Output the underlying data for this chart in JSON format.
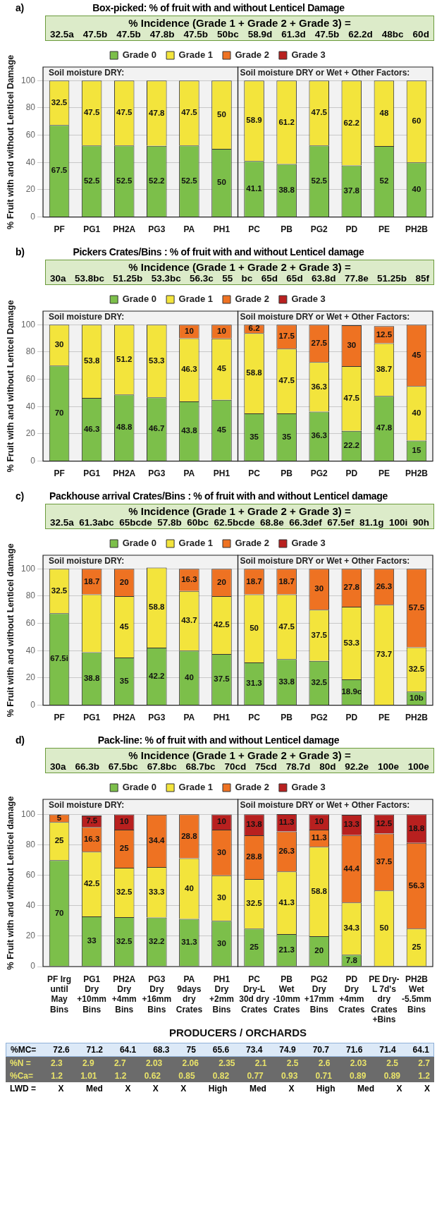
{
  "chart_data": [
    {
      "type": "bar",
      "stacked": true,
      "title": "Box-picked: % of fruit with and without Lenticel Damage",
      "subtitle": "% Incidence (Grade 1 + Grade 2 + Grade 3) =",
      "ylabel": "% Fruit with and without Lenticel Damage",
      "annotations": [
        "a)",
        "32.5a 47.5b 47.5b 47.8b 47.5b 50bc 58.9d 61.3d 47.5b 62.2d 48bc 60d"
      ],
      "bands": [
        {
          "axis": "x",
          "from": "PF",
          "to": "PH1",
          "label": "Soil moisture DRY:",
          "color": "#f2f2f2"
        },
        {
          "axis": "x",
          "from": "PC",
          "to": "PH2B",
          "label": "Soil moisture DRY or Wet + Other Factors:",
          "color": "#f2f2f2"
        }
      ],
      "categories": [
        "PF",
        "PG1",
        "PH2A",
        "PG3",
        "PA",
        "PH1",
        "PC",
        "PB",
        "PG2",
        "PD",
        "PE",
        "PH2B"
      ],
      "series": [
        {
          "name": "Grade 0",
          "color": "#7cbf4a",
          "values": [
            67.5,
            52.5,
            52.5,
            52.2,
            52.5,
            50,
            41.1,
            38.8,
            52.5,
            37.8,
            52,
            40
          ]
        },
        {
          "name": "Grade 1",
          "color": "#f3e43c",
          "values": [
            32.5,
            47.5,
            47.5,
            47.8,
            47.5,
            50,
            58.9,
            61.2,
            47.5,
            62.2,
            48,
            60
          ]
        },
        {
          "name": "Grade 2",
          "color": "#ee7222",
          "values": [
            null,
            null,
            null,
            null,
            null,
            null,
            null,
            null,
            null,
            null,
            null,
            null
          ]
        },
        {
          "name": "Grade 3",
          "color": "#b8201f",
          "values": [
            null,
            null,
            null,
            null,
            null,
            null,
            null,
            null,
            null,
            null,
            null,
            null
          ]
        }
      ],
      "ylim": [
        0,
        110
      ],
      "yticks": [
        0,
        20,
        40,
        60,
        80,
        100
      ],
      "grid": "y",
      "legend": "top",
      "data_labels": true
    },
    {
      "type": "bar",
      "stacked": true,
      "title": "Pickers Crates/Bins : % of fruit with and without Lenticel damage",
      "subtitle": "% Incidence (Grade 1 + Grade 2 + Grade 3) =",
      "ylabel": "% Fruit with and without Lentcel Damage",
      "annotations": [
        "b)",
        "30a 53.8bc 51.25b 53.3bc 56.3c 55 bc 65d 65d 63.8d 77.8e 51.25b 85f"
      ],
      "bands": [
        {
          "axis": "x",
          "from": "PF",
          "to": "PH1",
          "label": "Soil moisture DRY:",
          "color": "#f2f2f2"
        },
        {
          "axis": "x",
          "from": "PC",
          "to": "PH2B",
          "label": "Soil moisture DRY or Wet + Other Factors:",
          "color": "#f2f2f2"
        }
      ],
      "categories": [
        "PF",
        "PG1",
        "PH2A",
        "PG3",
        "PA",
        "PH1",
        "PC",
        "PB",
        "PG2",
        "PD",
        "PE",
        "PH2B"
      ],
      "series": [
        {
          "name": "Grade 0",
          "color": "#7cbf4a",
          "values": [
            70,
            46.3,
            48.8,
            46.7,
            43.8,
            45,
            35,
            35,
            36.3,
            22.2,
            47.8,
            15
          ]
        },
        {
          "name": "Grade 1",
          "color": "#f3e43c",
          "values": [
            30,
            53.8,
            51.2,
            53.3,
            46.3,
            45,
            58.8,
            47.5,
            36.3,
            47.5,
            38.7,
            40
          ]
        },
        {
          "name": "Grade 2",
          "color": "#ee7222",
          "values": [
            null,
            null,
            null,
            null,
            10,
            10,
            6.2,
            17.5,
            27.5,
            30,
            12.5,
            45
          ]
        },
        {
          "name": "Grade 3",
          "color": "#b8201f",
          "values": [
            null,
            null,
            null,
            null,
            null,
            null,
            null,
            null,
            null,
            null,
            null,
            null
          ]
        }
      ],
      "ylim": [
        0,
        110
      ],
      "yticks": [
        0,
        20,
        40,
        60,
        80,
        100
      ],
      "grid": "y",
      "legend": "top",
      "data_labels": true
    },
    {
      "type": "bar",
      "stacked": true,
      "title": "Packhouse arrival Crates/Bins : % of fruit with and without Lenticel damage",
      "subtitle": "% Incidence (Grade 1 + Grade 2 + Grade 3) =",
      "ylabel": "% Fruit with and without Lenticel damage",
      "annotations": [
        "c)",
        "32.5a 61.3abc 65bcde 57.8b 60bc 62.5bcde 68.8e 66.3def 67.5ef 81.1g 100i 90h"
      ],
      "bands": [
        {
          "axis": "x",
          "from": "PF",
          "to": "PH1",
          "label": "Soil moisture DRY:",
          "color": "#f2f2f2"
        },
        {
          "axis": "x",
          "from": "PC",
          "to": "PH2B",
          "label": "Soil moisture DRY or Wet + Other Factors:",
          "color": "#f2f2f2"
        }
      ],
      "categories": [
        "PF",
        "PG1",
        "PH2A",
        "PG3",
        "PA",
        "PH1",
        "PC",
        "PB",
        "PG2",
        "PD",
        "PE",
        "PH2B"
      ],
      "series": [
        {
          "name": "Grade 0",
          "color": "#7cbf4a",
          "values": [
            67.5,
            38.8,
            35,
            42.2,
            40,
            37.5,
            31.3,
            33.8,
            32.5,
            18.9,
            null,
            10
          ],
          "value_labels": [
            "67.5i",
            "38.8",
            "35",
            "42.2",
            "40",
            "37.5",
            "31.3",
            "33.8",
            "32.5",
            "18.9c",
            null,
            "10b"
          ]
        },
        {
          "name": "Grade 1",
          "color": "#f3e43c",
          "values": [
            32.5,
            42.5,
            45,
            58.8,
            43.7,
            42.5,
            50,
            47.5,
            37.5,
            53.3,
            73.7,
            32.5
          ],
          "value_labels": [
            "32.5",
            null,
            "45",
            "58.8",
            "43.7",
            "42.5",
            "50",
            "47.5",
            "37.5",
            "53.3",
            "73.7",
            "32.5"
          ]
        },
        {
          "name": "Grade 2",
          "color": "#ee7222",
          "values": [
            null,
            18.7,
            20,
            null,
            16.3,
            20,
            18.7,
            18.7,
            30,
            27.8,
            26.3,
            57.5
          ]
        },
        {
          "name": "Grade 3",
          "color": "#b8201f",
          "values": [
            null,
            null,
            null,
            null,
            null,
            null,
            null,
            null,
            null,
            null,
            null,
            null
          ]
        }
      ],
      "ylim": [
        0,
        110
      ],
      "yticks": [
        0,
        20,
        40,
        60,
        80,
        100
      ],
      "grid": "y",
      "legend": "top",
      "data_labels": true
    },
    {
      "type": "bar",
      "stacked": true,
      "title": "Pack-line: % of fruit with and without Lenticel damage",
      "subtitle": "% Incidence (Grade 1 + Grade 2 + Grade 3) =",
      "ylabel": "% Fruit with and without Lenticel damage",
      "xlabel": "PRODUCERS / ORCHARDS",
      "bands": [
        {
          "axis": "x",
          "from": "PF Irg\nuntil\nMay\nBins",
          "to": "PH1\nDry\n+2mm\nBins",
          "label": "Soil moisture DRY:",
          "color": "#f2f2f2"
        },
        {
          "axis": "x",
          "from": "PC\nDry-L\n30d dry\nCrates",
          "to": "PH2B\nWet\n-5.5mm\nBins",
          "label": "Soil moisture DRY or Wet + Other Factors:",
          "color": "#f2f2f2"
        }
      ],
      "annotations": [
        "d)",
        "30a 66.3b 67.5bc 67.8bc 68.7bc 70cd 75cd 78.7d 80d 92.2e 100e 100e",
        "%MC= 72.6 71.2 64.1 68.3 75 65.6 73.4 74.9 70.7 71.6 71.4 64.1",
        "%N = 2.3 2.9 2.7 2.03 2.06 2.35 2.1 2.5 2.6 2.03 2.5 2.7",
        "%Ca= 1.2 1.01 1.2 0.62 0.85 0.82 0.77 0.93 0.71 0.89 0.89 1.2",
        "LWD = X Med X X X High Med X High Med X X"
      ],
      "categories": [
        "PF Irg\nuntil\nMay\nBins",
        "PG1\nDry\n+10mm\nBins",
        "PH2A\nDry\n+4mm\nBins",
        "PG3\nDry\n+16mm\nBins",
        "PA\n9days\ndry\nCrates",
        "PH1\nDry\n+2mm\nBins",
        "PC\nDry-L\n30d dry\nCrates",
        "PB\nWet\n-10mm\nCrates",
        "PG2\nDry\n+17mm\nBins",
        "PD\nDry\n+4mm\nCrates",
        "PE Dry-\nL 7d's\ndry\nCrates\n+Bins",
        "PH2B\nWet\n-5.5mm\nBins"
      ],
      "series": [
        {
          "name": "Grade 0",
          "color": "#7cbf4a",
          "values": [
            70,
            33,
            32.5,
            32.2,
            31.3,
            30,
            25,
            21.3,
            20,
            7.8,
            null,
            null
          ]
        },
        {
          "name": "Grade 1",
          "color": "#f3e43c",
          "values": [
            25,
            42.5,
            32.5,
            33.3,
            40,
            30,
            32.5,
            41.3,
            58.8,
            34.3,
            50,
            25
          ]
        },
        {
          "name": "Grade 2",
          "color": "#ee7222",
          "values": [
            5,
            16.3,
            25,
            34.4,
            28.8,
            30,
            28.8,
            26.3,
            11.3,
            44.4,
            37.5,
            56.3
          ]
        },
        {
          "name": "Grade 3",
          "color": "#b8201f",
          "values": [
            null,
            7.5,
            10,
            null,
            null,
            10,
            13.8,
            11.3,
            10,
            13.3,
            12.5,
            18.8
          ]
        }
      ],
      "ylim": [
        0,
        110
      ],
      "yticks": [
        0,
        20,
        40,
        60,
        80,
        100
      ],
      "grid": "y",
      "legend": "top",
      "data_labels": true
    }
  ]
}
